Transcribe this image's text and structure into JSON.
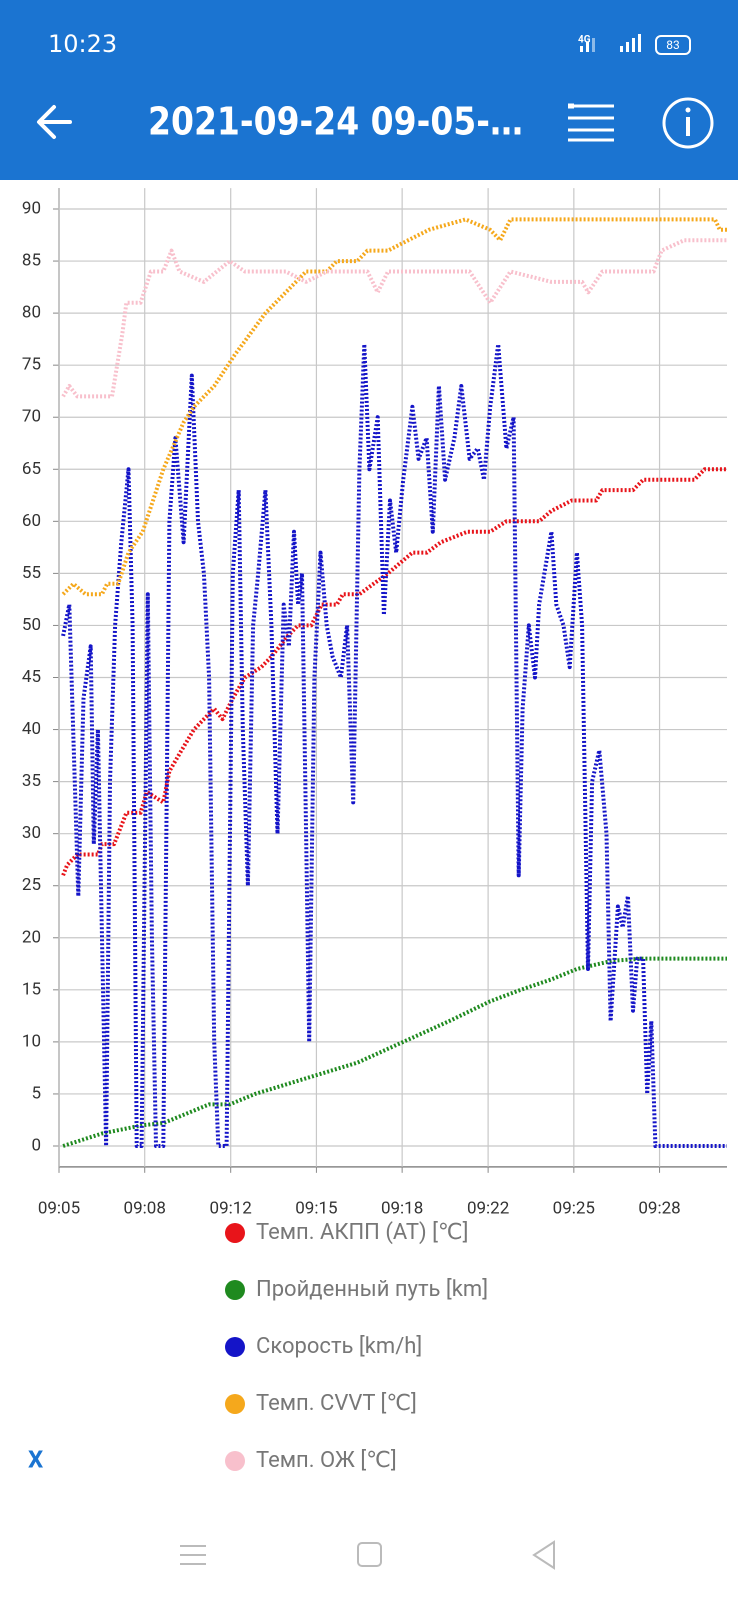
{
  "status_bar": {
    "time": "10:23",
    "network": "4G",
    "battery": "83"
  },
  "header": {
    "title": "2021-09-24 09-05-…"
  },
  "chart_data": {
    "type": "line",
    "xlim": [
      0,
      25.95
    ],
    "xticks": [
      {
        "value": 0,
        "label": "09:05"
      },
      {
        "value": 3.33,
        "label": "09:08"
      },
      {
        "value": 6.67,
        "label": "09:12"
      },
      {
        "value": 10,
        "label": "09:15"
      },
      {
        "value": 13.33,
        "label": "09:18"
      },
      {
        "value": 16.67,
        "label": "09:22"
      },
      {
        "value": 20,
        "label": "09:25"
      },
      {
        "value": 23.33,
        "label": "09:28"
      }
    ],
    "ylim": [
      -2,
      92
    ],
    "yticks": [
      0,
      5,
      10,
      15,
      20,
      25,
      30,
      35,
      40,
      45,
      50,
      55,
      60,
      65,
      70,
      75,
      80,
      85,
      90
    ],
    "grid": true,
    "series": [
      {
        "name": "Темп. АКПП (AT) [℃]",
        "color": "#e8141a",
        "x": [
          0.16,
          0.32,
          0.71,
          1.51,
          1.67,
          2.14,
          2.3,
          2.62,
          3.17,
          3.41,
          4.05,
          4.29,
          4.76,
          5.24,
          5.63,
          6.03,
          6.35,
          6.75,
          7.22,
          7.86,
          8.25,
          8.89,
          9.29,
          9.8,
          10.2,
          10.79,
          11.03,
          11.67,
          12.22,
          12.78,
          13.25,
          13.73,
          14.29,
          14.84,
          15.87,
          16.75,
          17.38,
          18.65,
          19.13,
          19.92,
          20.87,
          21.11,
          22.3,
          22.7,
          24.68,
          25.08,
          25.95
        ],
        "values": [
          26,
          27,
          28,
          28,
          29,
          29,
          30,
          32,
          32,
          34,
          33,
          36,
          38,
          40,
          41,
          42,
          41,
          43,
          45,
          46,
          47,
          49,
          50,
          50,
          52,
          52,
          53,
          53,
          54,
          55,
          56,
          57,
          57,
          58,
          59,
          59,
          60,
          60,
          61,
          62,
          62,
          63,
          63,
          64,
          64,
          65,
          65
        ]
      },
      {
        "name": "Пройденный путь [km]",
        "color": "#1f8a1f",
        "x": [
          0.16,
          1.67,
          3.25,
          4.05,
          5.83,
          6.63,
          7.62,
          9.6,
          11.59,
          13.37,
          15.16,
          16.75,
          17.94,
          19.13,
          20.12,
          21.51,
          22.7,
          25.95
        ],
        "values": [
          0,
          1.2,
          2,
          2.2,
          4,
          4,
          5,
          6.5,
          8,
          10,
          12,
          13.9,
          15,
          16,
          17,
          17.8,
          18,
          18
        ]
      },
      {
        "name": "Скорость [km/h]",
        "color": "#1414c8",
        "x": [
          0.16,
          0.4,
          0.75,
          0.95,
          1.23,
          1.35,
          1.51,
          1.83,
          1.98,
          2.18,
          2.42,
          2.7,
          2.86,
          3.02,
          3.21,
          3.45,
          3.61,
          3.77,
          4.05,
          4.29,
          4.52,
          4.84,
          5.16,
          5.4,
          5.63,
          5.83,
          6.03,
          6.19,
          6.51,
          6.75,
          6.98,
          7.14,
          7.34,
          7.54,
          7.74,
          8.02,
          8.25,
          8.49,
          8.73,
          8.93,
          9.13,
          9.29,
          9.44,
          9.6,
          9.72,
          9.92,
          10.16,
          10.4,
          10.63,
          10.95,
          11.19,
          11.43,
          11.67,
          11.86,
          12.06,
          12.38,
          12.62,
          12.86,
          13.1,
          13.37,
          13.73,
          13.97,
          14.28,
          14.52,
          14.76,
          15.0,
          15.36,
          15.63,
          15.95,
          16.27,
          16.51,
          16.75,
          17.06,
          17.38,
          17.66,
          17.86,
          18.01,
          18.25,
          18.49,
          18.65,
          19.13,
          19.32,
          19.6,
          19.84,
          20.12,
          20.32,
          20.55,
          20.71,
          20.99,
          21.27,
          21.43,
          21.71,
          21.9,
          22.1,
          22.3,
          22.46,
          22.69,
          22.85,
          23.01,
          23.17,
          25.95
        ],
        "values": [
          49,
          52,
          24,
          43,
          48,
          29,
          40,
          0,
          35,
          50,
          58,
          65,
          50,
          0,
          0,
          53,
          20,
          0,
          0,
          60,
          68,
          58,
          74,
          60,
          55,
          45,
          10,
          0,
          0,
          55,
          63,
          40,
          25,
          50,
          55,
          63,
          50,
          30,
          52,
          48,
          59,
          52,
          55,
          30,
          10,
          45,
          57,
          50,
          47,
          45,
          50,
          33,
          65,
          77,
          65,
          70,
          51,
          62,
          57,
          64,
          71,
          66,
          68,
          59,
          73,
          64,
          68,
          73,
          66,
          67,
          64,
          71,
          77,
          67,
          70,
          26,
          42,
          50,
          45,
          52,
          59,
          52,
          50,
          46,
          57,
          50,
          17,
          35,
          38,
          30,
          12,
          23,
          21,
          24,
          13,
          18,
          18,
          5,
          12,
          0,
          0
        ]
      },
      {
        "name": "Темп. CVVT [℃]",
        "color": "#f5a81c",
        "x": [
          0.16,
          0.56,
          1.03,
          1.67,
          1.87,
          2.3,
          2.7,
          3.25,
          4.05,
          4.84,
          5.24,
          6.03,
          6.83,
          8.02,
          8.81,
          9.6,
          10.4,
          10.79,
          11.59,
          11.98,
          12.78,
          13.57,
          14.37,
          15.79,
          16.75,
          17.14,
          17.54,
          25.48,
          25.67,
          25.95
        ],
        "values": [
          53,
          54,
          53,
          53,
          54,
          54,
          57,
          59,
          65,
          69.5,
          71,
          73,
          76,
          80,
          82,
          84,
          84,
          85,
          85,
          86,
          86,
          87,
          88,
          89,
          88,
          87,
          89,
          89,
          88,
          88
        ]
      },
      {
        "name": "Темп. ОЖ [℃]",
        "color": "#f8c0cc",
        "x": [
          0.16,
          0.4,
          0.71,
          2.06,
          2.46,
          2.62,
          3.17,
          3.57,
          4.05,
          4.37,
          4.68,
          5.63,
          6.63,
          7.22,
          8.81,
          9.6,
          10.4,
          11.98,
          12.38,
          12.78,
          14.37,
          15.95,
          16.75,
          17.54,
          19.13,
          20.32,
          20.56,
          21.11,
          23.1,
          23.41,
          24.29,
          25.95
        ],
        "values": [
          72,
          73,
          72,
          72,
          78,
          81,
          81,
          84,
          84,
          86,
          84,
          83,
          85,
          84,
          84,
          83,
          84,
          84,
          82,
          84,
          84,
          84,
          81,
          84,
          83,
          83,
          82,
          84,
          84,
          86,
          87,
          87
        ]
      }
    ]
  },
  "footer": {
    "close": "X"
  }
}
